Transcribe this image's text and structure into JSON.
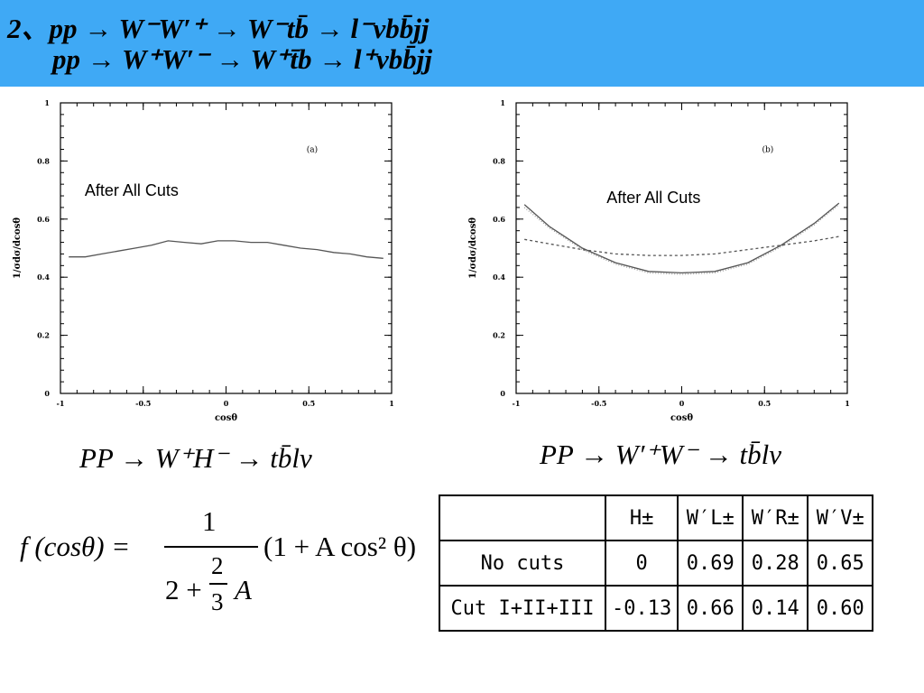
{
  "header": {
    "line1": "2、pp → W⁻W′⁺ → W⁻tb̄ → l⁻νbb̄jj",
    "line2": "pp → W⁺W′⁻ → W⁺t̄b → l⁺νbb̄jj"
  },
  "chart_data": [
    {
      "type": "line",
      "panel_label": "(a)",
      "annotation": "After All Cuts",
      "xlabel": "cosθ",
      "ylabel": "1/σdσ/dcosθ",
      "xlim": [
        -1,
        1
      ],
      "ylim": [
        0,
        1
      ],
      "xticks": [
        "-1",
        "-0.5",
        "0",
        "0.5",
        "1"
      ],
      "yticks": [
        "0",
        "0.2",
        "0.4",
        "0.6",
        "0.8",
        "1"
      ],
      "grid": false,
      "series": [
        {
          "style": "solid",
          "x": [
            -0.95,
            -0.85,
            -0.75,
            -0.65,
            -0.55,
            -0.45,
            -0.35,
            -0.25,
            -0.15,
            -0.05,
            0.05,
            0.15,
            0.25,
            0.35,
            0.45,
            0.55,
            0.65,
            0.75,
            0.85,
            0.95
          ],
          "y": [
            0.47,
            0.47,
            0.48,
            0.49,
            0.5,
            0.51,
            0.525,
            0.52,
            0.515,
            0.525,
            0.525,
            0.52,
            0.52,
            0.51,
            0.5,
            0.495,
            0.485,
            0.48,
            0.47,
            0.465
          ]
        }
      ],
      "caption": "PP → W⁺H⁻ → tb̄lν"
    },
    {
      "type": "line",
      "panel_label": "(b)",
      "annotation": "After All Cuts",
      "xlabel": "cosθ",
      "ylabel": "1/σdσ/dcosθ",
      "xlim": [
        -1,
        1
      ],
      "ylim": [
        0,
        1
      ],
      "xticks": [
        "-1",
        "-0.5",
        "0",
        "0.5",
        "1"
      ],
      "yticks": [
        "0",
        "0.2",
        "0.4",
        "0.6",
        "0.8",
        "1"
      ],
      "grid": false,
      "series": [
        {
          "style": "solid",
          "x": [
            -0.95,
            -0.8,
            -0.6,
            -0.4,
            -0.2,
            0.0,
            0.2,
            0.4,
            0.6,
            0.8,
            0.95
          ],
          "y": [
            0.65,
            0.575,
            0.5,
            0.45,
            0.42,
            0.415,
            0.42,
            0.45,
            0.51,
            0.585,
            0.655
          ]
        },
        {
          "style": "dotted",
          "x": [
            -0.95,
            -0.8,
            -0.6,
            -0.4,
            -0.2,
            0.0,
            0.2,
            0.4,
            0.6,
            0.8,
            0.95
          ],
          "y": [
            0.64,
            0.57,
            0.495,
            0.445,
            0.415,
            0.41,
            0.415,
            0.445,
            0.505,
            0.58,
            0.65
          ]
        },
        {
          "style": "dashed",
          "x": [
            -0.95,
            -0.8,
            -0.6,
            -0.4,
            -0.2,
            0.0,
            0.2,
            0.4,
            0.6,
            0.8,
            0.95
          ],
          "y": [
            0.53,
            0.515,
            0.495,
            0.48,
            0.475,
            0.475,
            0.48,
            0.495,
            0.51,
            0.525,
            0.54
          ]
        }
      ],
      "caption": "PP → W′⁺W⁻ → tb̄lν"
    }
  ],
  "formula": {
    "lhs": "f (cosθ) =",
    "numerator": "1",
    "den_prefix": "2 +",
    "den_frac_num": "2",
    "den_frac_den": "3",
    "den_suffix": "A",
    "rhs": "(1 + A cos² θ)"
  },
  "table": {
    "headers": [
      "",
      "H±",
      "W′L±",
      "W′R±",
      "W′V±"
    ],
    "rows": [
      [
        "No cuts",
        "0",
        "0.69",
        "0.28",
        "0.65"
      ],
      [
        "Cut I+II+III",
        "-0.13",
        "0.66",
        "0.14",
        "0.60"
      ]
    ]
  }
}
